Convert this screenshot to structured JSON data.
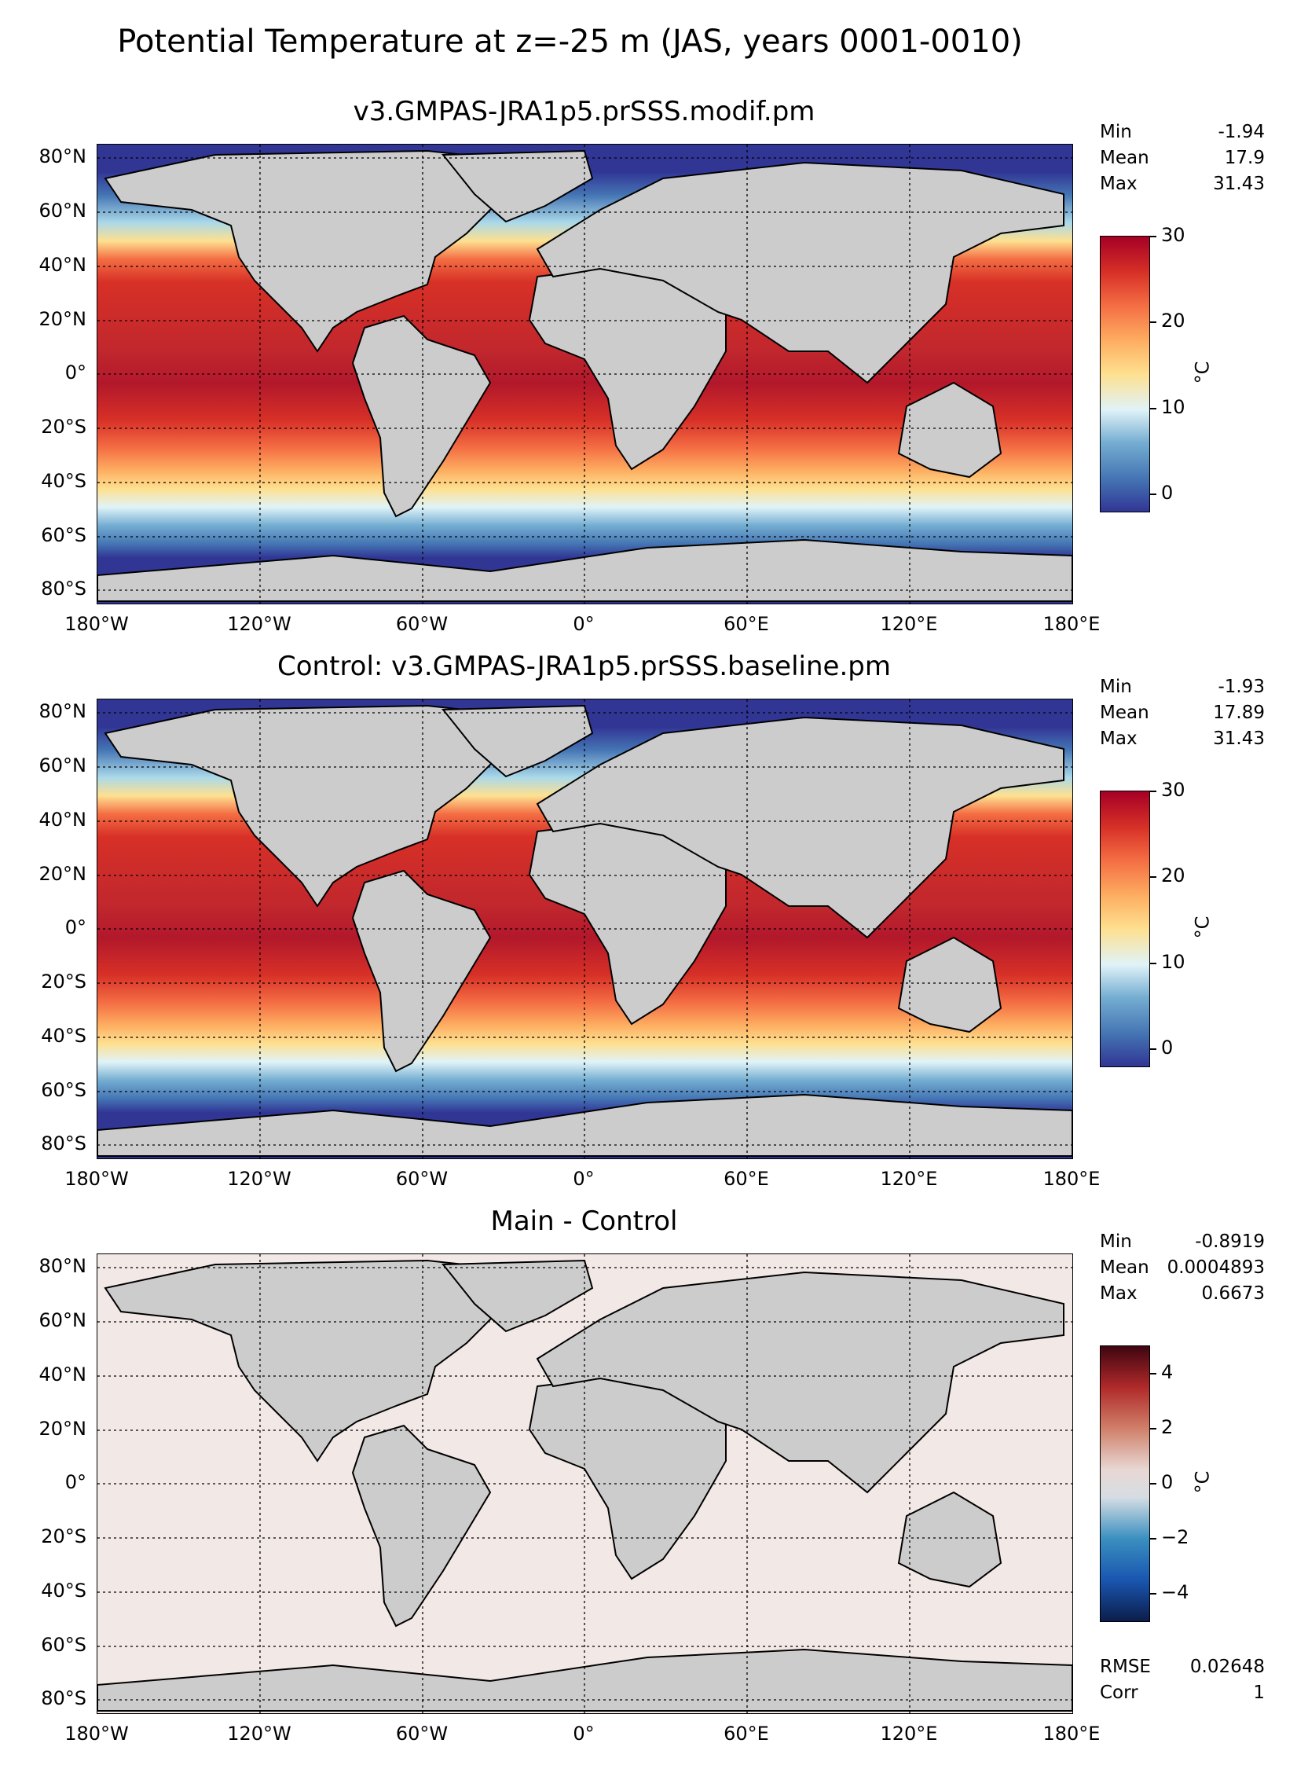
{
  "figure_title": "Potential Temperature at z=-25 m (JAS, years 0001-0010)",
  "lat_ticks": [
    "80°N",
    "60°N",
    "40°N",
    "20°N",
    "0°",
    "20°S",
    "40°S",
    "60°S",
    "80°S"
  ],
  "lon_ticks": [
    "180°W",
    "120°W",
    "60°W",
    "0°",
    "60°E",
    "120°E",
    "180°E"
  ],
  "panels": [
    {
      "title": "v3.GMPAS-JRA1p5.prSSS.modif.pm",
      "stats": {
        "min_label": "Min",
        "min": "-1.94",
        "mean_label": "Mean",
        "mean": "17.9",
        "max_label": "Max",
        "max": "31.43"
      },
      "colorbar": {
        "ticks": [
          "30",
          "20",
          "10",
          "0"
        ],
        "unit": "°C",
        "range": [
          -2,
          30
        ]
      }
    },
    {
      "title": "Control: v3.GMPAS-JRA1p5.prSSS.baseline.pm",
      "stats": {
        "min_label": "Min",
        "min": "-1.93",
        "mean_label": "Mean",
        "mean": "17.89",
        "max_label": "Max",
        "max": "31.43"
      },
      "colorbar": {
        "ticks": [
          "30",
          "20",
          "10",
          "0"
        ],
        "unit": "°C",
        "range": [
          -2,
          30
        ]
      }
    },
    {
      "title": "Main - Control",
      "stats": {
        "min_label": "Min",
        "min": "-0.8919",
        "mean_label": "Mean",
        "mean": "0.0004893",
        "max_label": "Max",
        "max": "0.6673"
      },
      "colorbar": {
        "ticks": [
          "4",
          "2",
          "0",
          "−2",
          "−4"
        ],
        "unit": "°C",
        "range": [
          -5,
          5
        ]
      },
      "extra": {
        "rmse_label": "RMSE",
        "rmse": "0.02648",
        "corr_label": "Corr",
        "corr": "1"
      }
    }
  ],
  "colors": {
    "land": "#cccccc",
    "cold": "#313695",
    "warm": "#b2182b",
    "diff_neutral": "#f2e8e6"
  }
}
